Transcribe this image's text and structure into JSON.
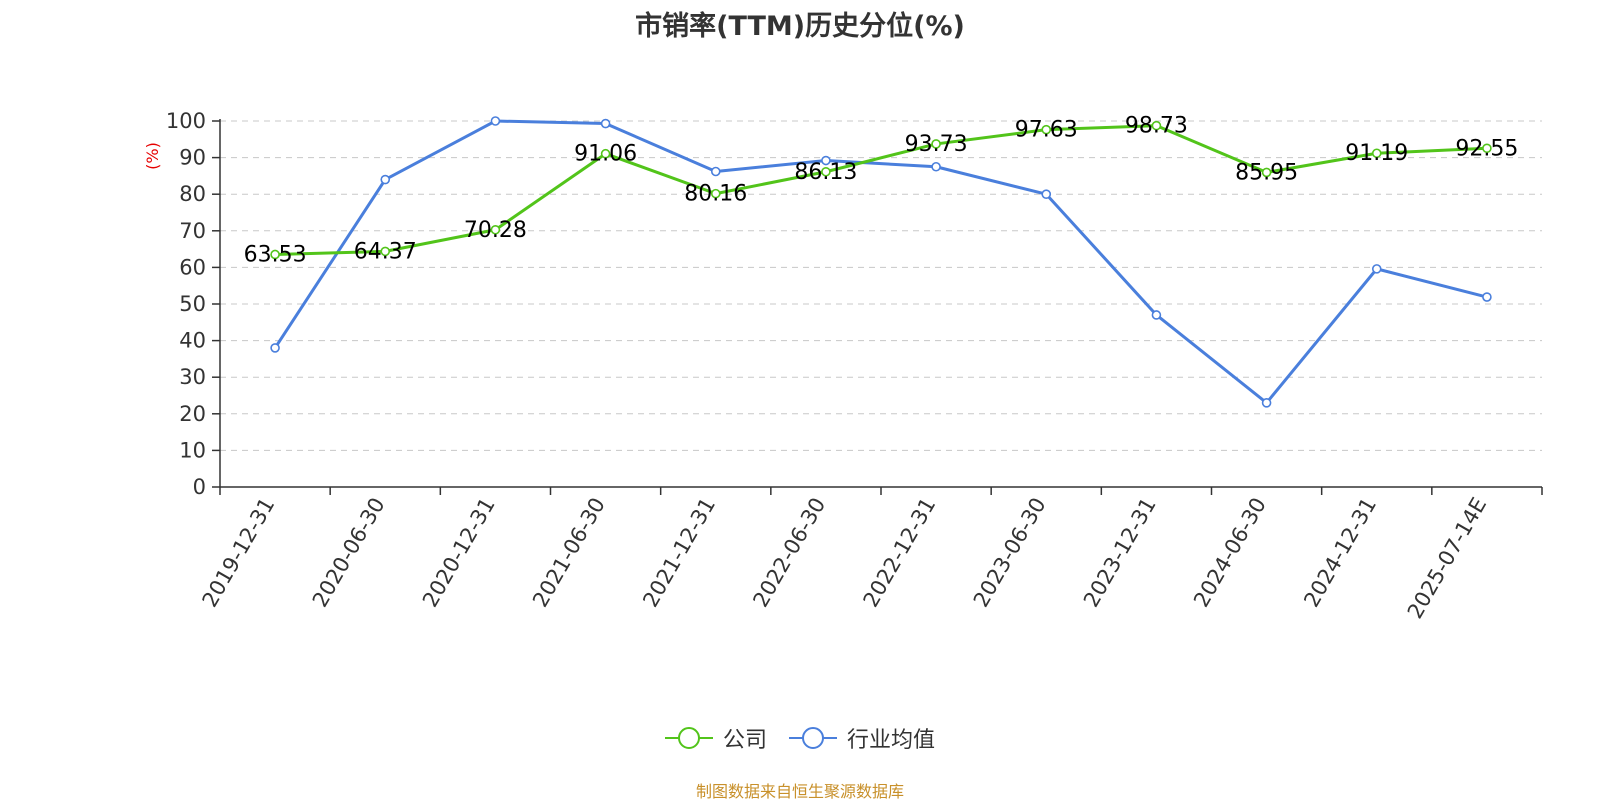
{
  "chart_data": {
    "type": "line",
    "title": "市销率(TTM)历史分位(%)",
    "ylabel": "(%)",
    "ylim": [
      0,
      100
    ],
    "yticks": [
      0,
      10,
      20,
      30,
      40,
      50,
      60,
      70,
      80,
      90,
      100
    ],
    "grid": true,
    "legend_position": "bottom",
    "categories": [
      "2019-12-31",
      "2020-06-30",
      "2020-12-31",
      "2021-06-30",
      "2021-12-31",
      "2022-06-30",
      "2022-12-31",
      "2023-06-30",
      "2023-12-31",
      "2024-06-30",
      "2024-12-31",
      "2025-07-14E"
    ],
    "series": [
      {
        "name": "公司",
        "color": "#52c41a",
        "values": [
          63.53,
          64.37,
          70.28,
          91.06,
          80.16,
          86.13,
          93.73,
          97.63,
          98.73,
          85.95,
          91.19,
          92.55
        ],
        "labels": [
          "63.53",
          "64.37",
          "70.28",
          "91.06",
          "80.16",
          "86.13",
          "93.73",
          "97.63",
          "98.73",
          "85.95",
          "91.19",
          "92.55"
        ]
      },
      {
        "name": "行业均值",
        "color": "#4a7fdc",
        "values": [
          38,
          84,
          100,
          99.3,
          86.2,
          89.2,
          87.5,
          80,
          47,
          23,
          59.6,
          51.9
        ]
      }
    ]
  },
  "footer": {
    "text": "制图数据来自恒生聚源数据库",
    "color": "#c8902a"
  },
  "y_axis_label_color": "#e60000"
}
